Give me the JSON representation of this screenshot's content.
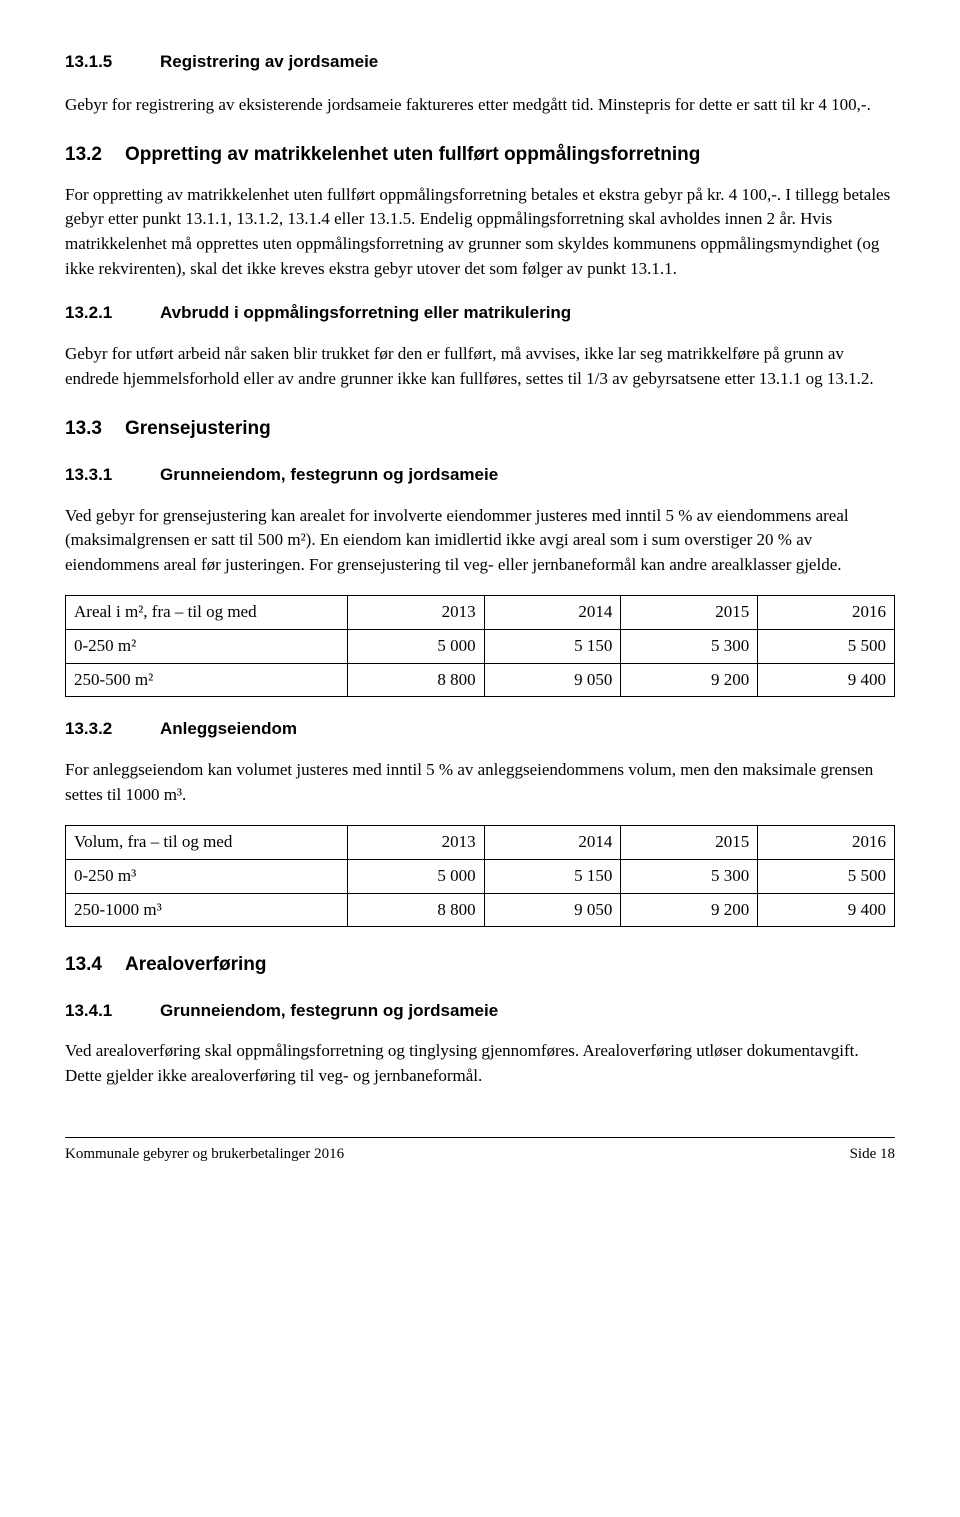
{
  "s1315": {
    "num": "13.1.5",
    "title": "Registrering av jordsameie",
    "p1": "Gebyr for registrering av eksisterende jordsameie faktureres etter medgått tid. Minstepris for dette er satt til kr 4 100,-."
  },
  "s132": {
    "num": "13.2",
    "title": "Oppretting av matrikkelenhet uten fullført oppmålingsforretning",
    "p1": "For oppretting av matrikkelenhet uten fullført oppmålingsforretning betales et ekstra gebyr på kr. 4 100,-. I tillegg betales gebyr etter punkt 13.1.1, 13.1.2, 13.1.4 eller 13.1.5. Endelig oppmålingsforretning skal avholdes innen 2 år. Hvis matrikkelenhet må opprettes uten oppmålingsforretning av grunner som skyldes kommunens oppmålingsmyndighet (og ikke rekvirenten), skal det ikke kreves ekstra gebyr utover det som følger av punkt 13.1.1."
  },
  "s1321": {
    "num": "13.2.1",
    "title": "Avbrudd i oppmålingsforretning eller matrikulering",
    "p1": "Gebyr for utført arbeid når saken blir trukket før den er fullført, må avvises, ikke lar seg matrikkelføre på grunn av endrede hjemmelsforhold eller av andre grunner ikke kan fullføres, settes til 1/3 av gebyrsatsene etter 13.1.1 og 13.1.2."
  },
  "s133": {
    "num": "13.3",
    "title": "Grensejustering"
  },
  "s1331": {
    "num": "13.3.1",
    "title": "Grunneiendom, festegrunn og jordsameie",
    "p1": "Ved gebyr for grensejustering kan arealet for involverte eiendommer justeres med inntil 5 % av eiendommens areal (maksimalgrensen er satt til 500 m²). En eiendom kan imidlertid ikke avgi areal som i sum overstiger 20 % av eiendommens areal før justeringen. For grensejustering til veg- eller jernbaneformål kan andre arealklasser gjelde."
  },
  "table1": {
    "header_label": "Areal i m², fra – til og med",
    "years": [
      "2013",
      "2014",
      "2015",
      "2016"
    ],
    "rows": [
      {
        "label": "0-250 m²",
        "vals": [
          "5 000",
          "5 150",
          "5 300",
          "5 500"
        ]
      },
      {
        "label": "250-500 m²",
        "vals": [
          "8 800",
          "9 050",
          "9 200",
          "9 400"
        ]
      }
    ]
  },
  "s1332": {
    "num": "13.3.2",
    "title": "Anleggseiendom",
    "p1": "For anleggseiendom kan volumet justeres med inntil 5 % av anleggseiendommens volum, men den maksimale grensen settes til 1000 m³."
  },
  "table2": {
    "header_label": "Volum, fra – til og med",
    "years": [
      "2013",
      "2014",
      "2015",
      "2016"
    ],
    "rows": [
      {
        "label": "0-250 m³",
        "vals": [
          "5 000",
          "5 150",
          "5 300",
          "5 500"
        ]
      },
      {
        "label": "250-1000 m³",
        "vals": [
          "8 800",
          "9 050",
          "9 200",
          "9 400"
        ]
      }
    ]
  },
  "s134": {
    "num": "13.4",
    "title": "Arealoverføring"
  },
  "s1341": {
    "num": "13.4.1",
    "title": "Grunneiendom, festegrunn og jordsameie",
    "p1": "Ved arealoverføring skal oppmålingsforretning og tinglysing gjennomføres. Arealoverføring utløser dokumentavgift. Dette gjelder ikke arealoverføring til veg- og jernbaneformål."
  },
  "footer": {
    "left": "Kommunale gebyrer og brukerbetalinger 2016",
    "right": "Side 18"
  }
}
